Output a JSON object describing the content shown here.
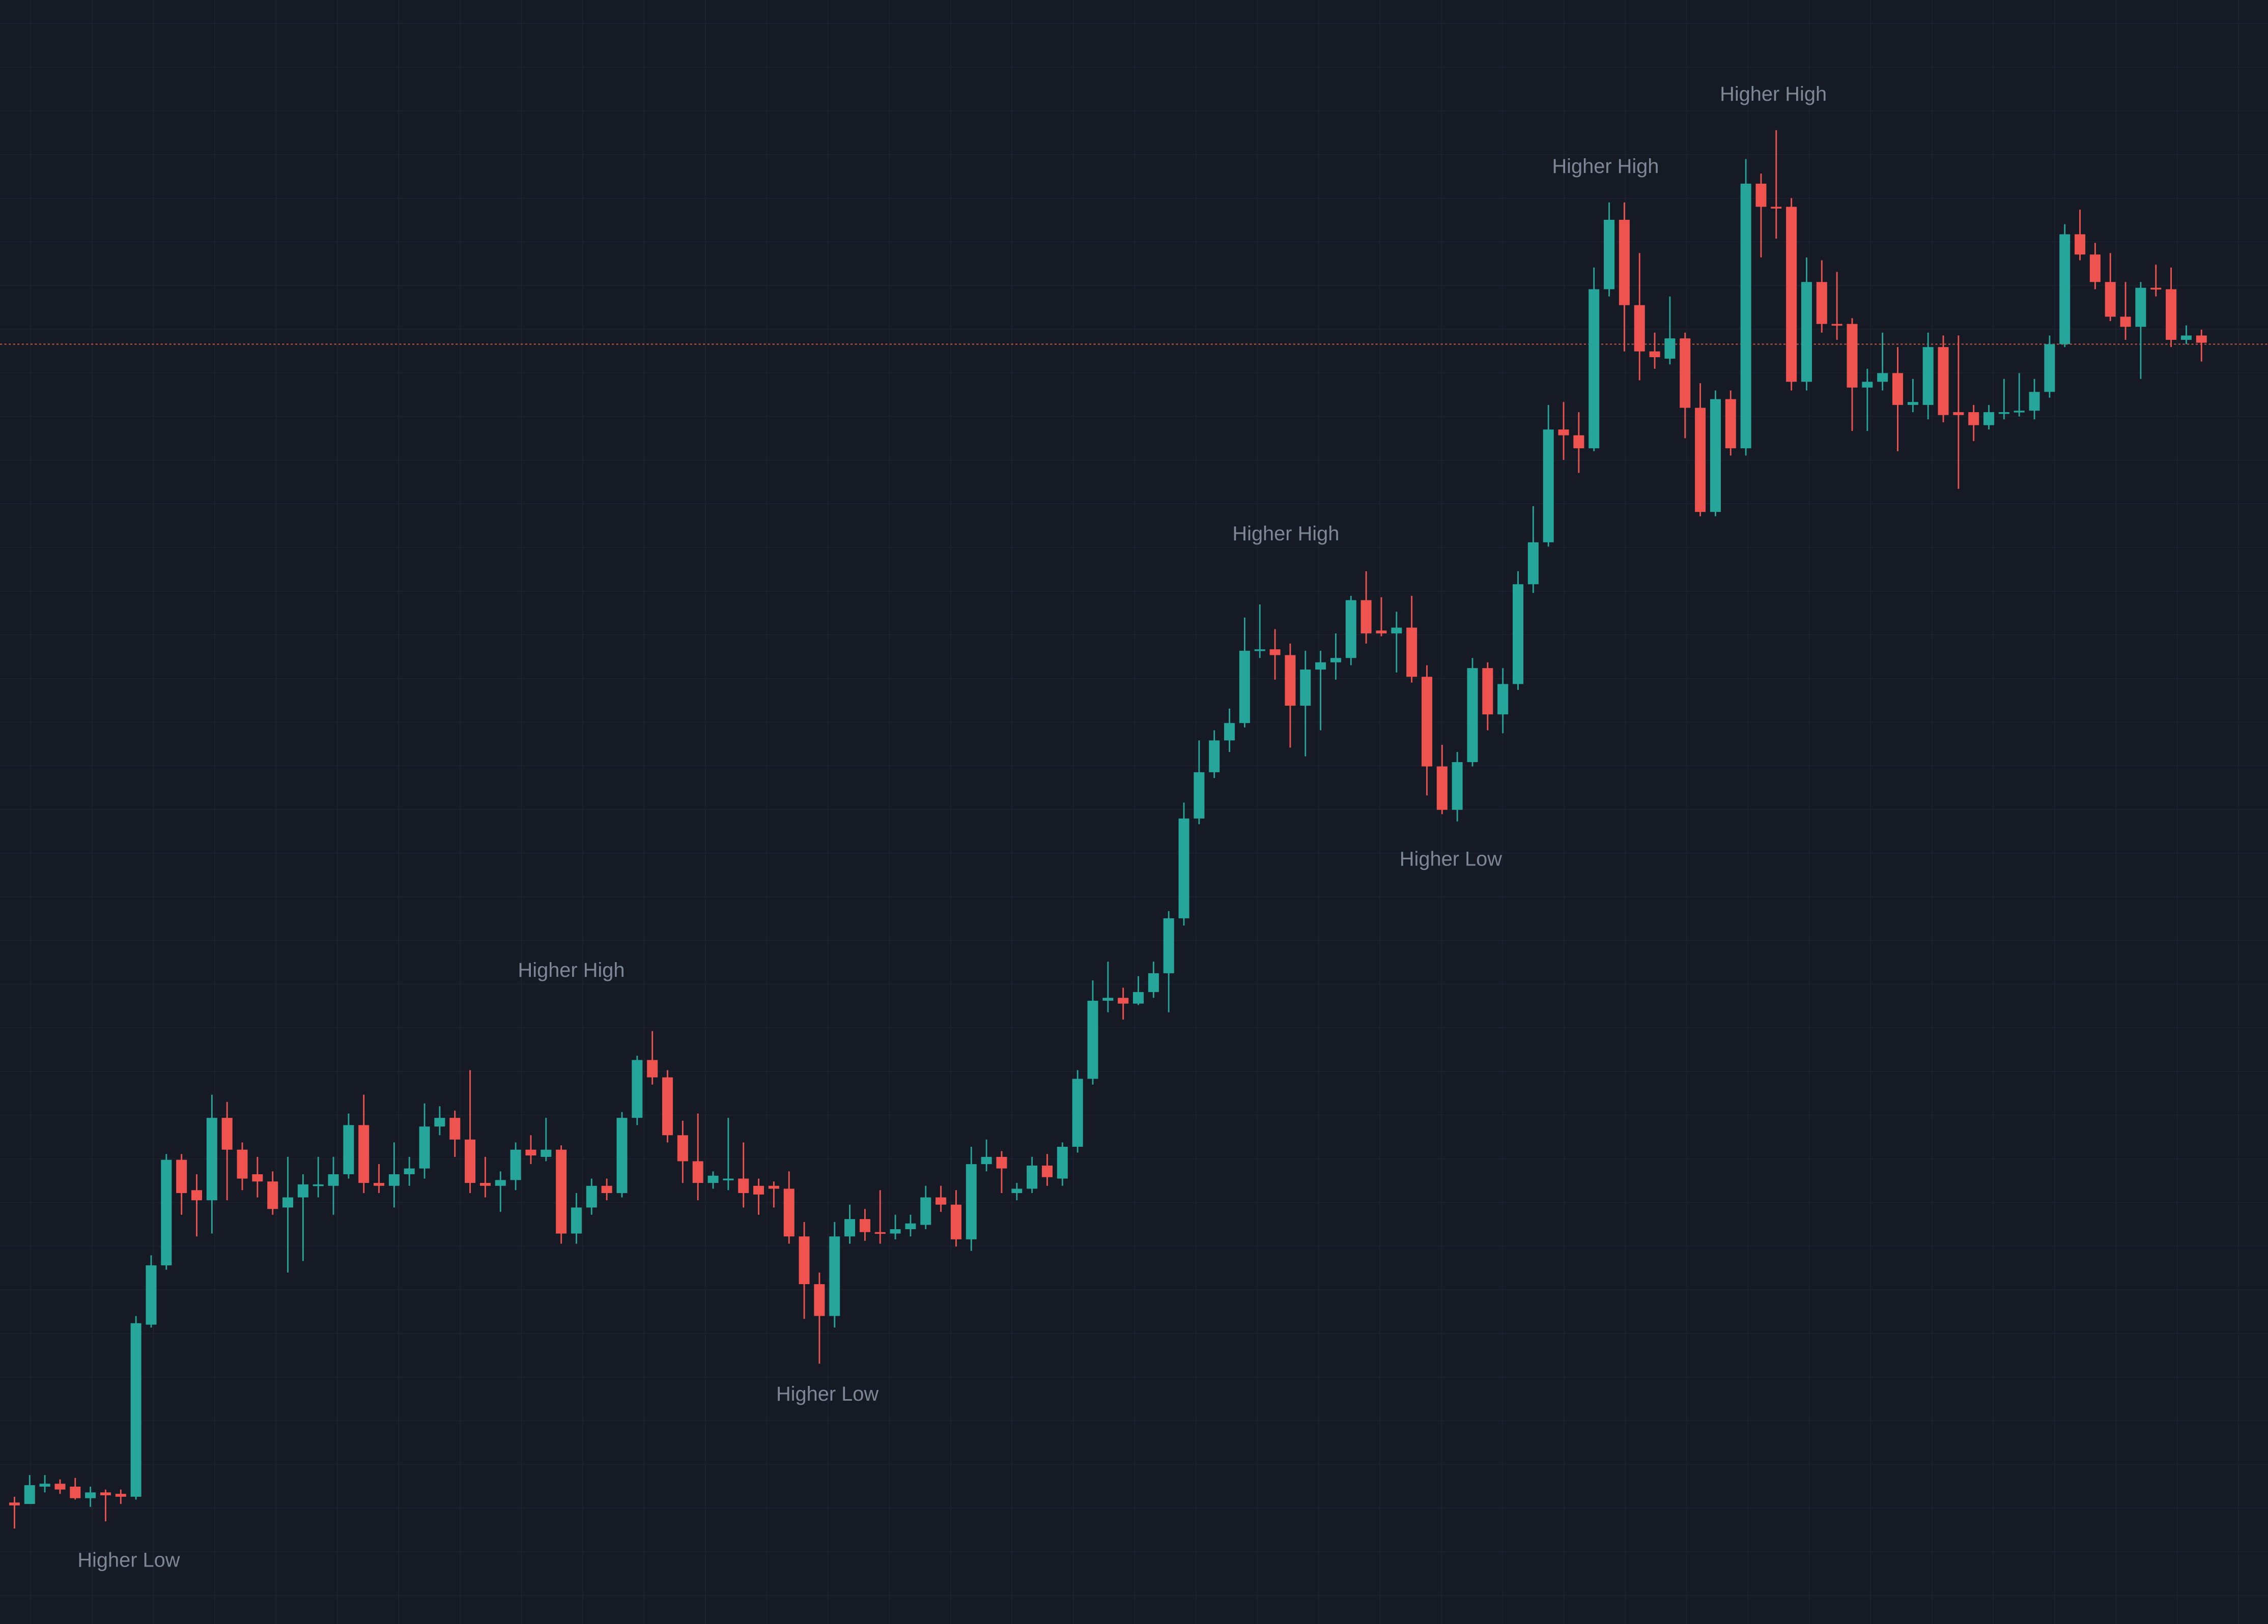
{
  "chart_data": {
    "type": "candlestick",
    "ylim": [
      0,
      1123
    ],
    "up_color": "#26a69a",
    "down_color": "#ef5350",
    "price_line": 885,
    "price_line_color": "#b3553f",
    "annotations": [
      "Higher Low",
      "Higher High",
      "Higher Low",
      "Higher High",
      "Higher Low",
      "Higher High",
      "Higher High"
    ],
    "open": [
      84,
      83,
      95,
      97,
      95,
      87,
      91,
      90,
      88,
      207,
      248,
      321,
      300,
      293,
      350,
      328,
      311,
      306,
      288,
      295,
      303,
      303,
      311,
      345,
      305,
      303,
      311,
      315,
      344,
      350,
      335,
      305,
      303,
      307,
      328,
      323,
      328,
      270,
      288,
      303,
      298,
      350,
      390,
      378,
      338,
      320,
      305,
      307,
      308,
      303,
      303,
      301,
      268,
      235,
      213,
      268,
      280,
      271,
      270,
      273,
      276,
      295,
      290,
      266,
      318,
      323,
      298,
      301,
      317,
      308,
      330,
      377,
      431,
      433,
      429,
      437,
      450,
      488,
      557,
      589,
      611,
      623,
      673,
      674,
      670,
      635,
      660,
      665,
      668,
      708,
      687,
      685,
      689,
      655,
      593,
      563,
      596,
      661,
      629,
      650,
      719,
      748,
      826,
      822,
      813,
      923,
      971,
      912,
      880,
      875,
      889,
      841,
      769,
      847,
      813,
      996,
      980,
      980,
      859,
      928,
      899,
      899,
      855,
      859,
      865,
      843,
      843,
      883,
      838,
      838,
      829,
      837,
      838,
      839,
      852,
      885,
      961,
      947,
      928,
      904,
      897,
      924,
      923,
      888,
      891
    ],
    "high": [
      88,
      103,
      103,
      100,
      101,
      95,
      93,
      93,
      213,
      255,
      325,
      325,
      311,
      366,
      361,
      333,
      323,
      313,
      323,
      311,
      323,
      323,
      353,
      366,
      318,
      333,
      323,
      360,
      358,
      355,
      383,
      323,
      313,
      333,
      338,
      350,
      331,
      298,
      308,
      308,
      354,
      393,
      410,
      383,
      348,
      353,
      313,
      350,
      333,
      308,
      306,
      313,
      278,
      243,
      278,
      290,
      287,
      300,
      283,
      283,
      303,
      303,
      300,
      330,
      335,
      327,
      305,
      323,
      325,
      333,
      383,
      445,
      458,
      440,
      448,
      458,
      493,
      568,
      611,
      618,
      633,
      696,
      705,
      688,
      678,
      673,
      673,
      685,
      711,
      728,
      710,
      700,
      711,
      663,
      608,
      603,
      668,
      665,
      661,
      728,
      773,
      843,
      845,
      838,
      938,
      983,
      983,
      948,
      893,
      918,
      893,
      858,
      853,
      853,
      1013,
      1003,
      1033,
      986,
      945,
      943,
      935,
      903,
      868,
      893,
      883,
      861,
      893,
      891,
      891,
      843,
      843,
      861,
      865,
      861,
      891,
      968,
      978,
      955,
      948,
      928,
      928,
      940,
      938,
      898,
      895
    ],
    "low": [
      66,
      83,
      91,
      90,
      86,
      81,
      71,
      83,
      86,
      205,
      245,
      283,
      268,
      270,
      293,
      300,
      295,
      283,
      243,
      251,
      295,
      283,
      308,
      298,
      298,
      288,
      303,
      308,
      338,
      323,
      298,
      295,
      285,
      300,
      318,
      320,
      263,
      263,
      283,
      293,
      295,
      345,
      373,
      333,
      305,
      293,
      301,
      300,
      288,
      283,
      288,
      263,
      211,
      180,
      205,
      263,
      265,
      263,
      266,
      268,
      273,
      285,
      261,
      258,
      313,
      298,
      293,
      298,
      303,
      303,
      326,
      373,
      423,
      418,
      428,
      433,
      423,
      483,
      553,
      585,
      603,
      620,
      668,
      653,
      606,
      600,
      618,
      653,
      663,
      678,
      683,
      658,
      651,
      573,
      560,
      555,
      593,
      618,
      616,
      646,
      713,
      745,
      805,
      796,
      811,
      918,
      880,
      860,
      868,
      871,
      820,
      766,
      766,
      808,
      808,
      945,
      958,
      853,
      853,
      893,
      888,
      825,
      825,
      853,
      811,
      838,
      833,
      831,
      785,
      818,
      826,
      833,
      835,
      833,
      848,
      883,
      943,
      923,
      901,
      888,
      861,
      918,
      883,
      885,
      873
    ],
    "close": [
      82,
      96,
      97,
      93,
      87,
      91,
      89,
      88,
      208,
      248,
      321,
      298,
      293,
      350,
      328,
      308,
      306,
      287,
      295,
      304,
      304,
      311,
      345,
      305,
      303,
      311,
      315,
      344,
      350,
      335,
      305,
      303,
      307,
      328,
      324,
      328,
      270,
      288,
      303,
      298,
      350,
      390,
      378,
      338,
      320,
      305,
      310,
      308,
      298,
      297,
      301,
      268,
      235,
      213,
      268,
      280,
      271,
      270,
      273,
      277,
      295,
      290,
      266,
      318,
      323,
      315,
      301,
      317,
      309,
      330,
      377,
      431,
      433,
      429,
      437,
      450,
      488,
      557,
      589,
      611,
      623,
      673,
      674,
      670,
      635,
      660,
      665,
      668,
      708,
      685,
      685,
      689,
      655,
      593,
      563,
      596,
      661,
      629,
      650,
      719,
      748,
      826,
      822,
      813,
      923,
      971,
      912,
      880,
      876,
      889,
      841,
      769,
      847,
      813,
      996,
      980,
      979,
      859,
      928,
      899,
      898,
      855,
      859,
      865,
      843,
      845,
      883,
      836,
      836,
      829,
      838,
      838,
      839,
      852,
      885,
      961,
      947,
      928,
      904,
      897,
      924,
      923,
      888,
      891,
      886
    ]
  }
}
